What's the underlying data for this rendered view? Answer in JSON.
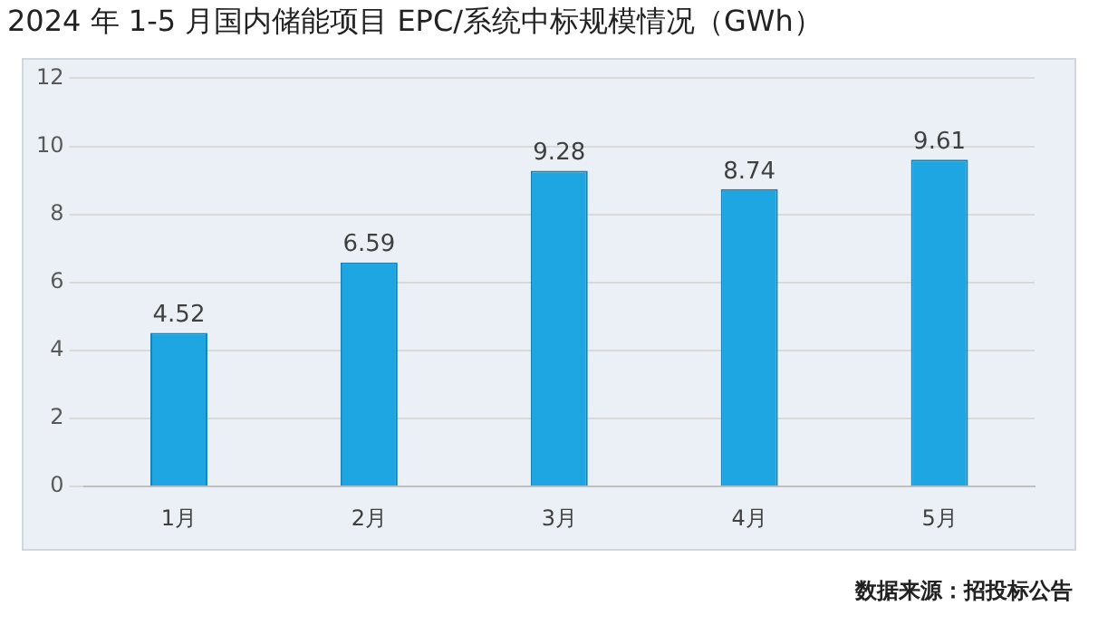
{
  "chart_data": {
    "type": "bar",
    "title": "2024 年 1-5 月国内储能项目 EPC/系统中标规模情况（GWh）",
    "categories": [
      "1月",
      "2月",
      "3月",
      "4月",
      "5月"
    ],
    "values": [
      4.52,
      6.59,
      9.28,
      8.74,
      9.61
    ],
    "color": "#1ea6e2",
    "ylim": [
      0,
      12
    ],
    "yticks": [
      0,
      2,
      4,
      6,
      8,
      10,
      12
    ],
    "grid": "y",
    "data_labels": true,
    "legend": false,
    "annotations": [
      "数据来源：招投标公告"
    ]
  }
}
